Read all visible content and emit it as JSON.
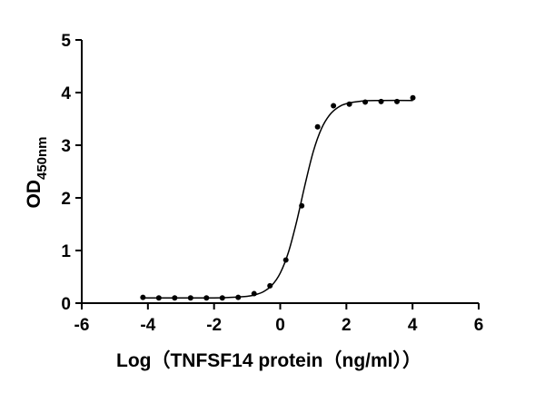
{
  "chart_data": {
    "type": "scatter",
    "xlabel": "Log（TNFSF14 protein（ng/ml））",
    "ylabel": "OD",
    "ylabel_subscript": "450nm",
    "xlim": [
      -6,
      6
    ],
    "xticks": [
      -6,
      -4,
      -2,
      0,
      2,
      4,
      6
    ],
    "ylim": [
      0,
      5
    ],
    "yticks": [
      0,
      1,
      2,
      3,
      4,
      5
    ],
    "color": "#000000",
    "points": {
      "x": [
        -4.15,
        -3.67,
        -3.19,
        -2.71,
        -2.23,
        -1.75,
        -1.27,
        -0.79,
        -0.31,
        0.17,
        0.65,
        1.13,
        1.61,
        2.09,
        2.57,
        3.05,
        3.53,
        4.01
      ],
      "y": [
        0.11,
        0.1,
        0.1,
        0.1,
        0.1,
        0.1,
        0.11,
        0.18,
        0.33,
        0.82,
        1.85,
        3.35,
        3.75,
        3.78,
        3.82,
        3.83,
        3.83,
        3.9
      ]
    },
    "curve": {
      "x": [
        -4.15,
        -3,
        -2,
        -1.5,
        -1,
        -0.75,
        -0.5,
        -0.25,
        0,
        0.25,
        0.5,
        0.75,
        1,
        1.25,
        1.5,
        1.75,
        2,
        2.5,
        3,
        4.01
      ],
      "y": [
        0.1,
        0.1,
        0.1,
        0.11,
        0.13,
        0.16,
        0.22,
        0.34,
        0.57,
        0.97,
        1.56,
        2.25,
        2.88,
        3.32,
        3.58,
        3.72,
        3.79,
        3.84,
        3.85,
        3.85
      ]
    }
  }
}
